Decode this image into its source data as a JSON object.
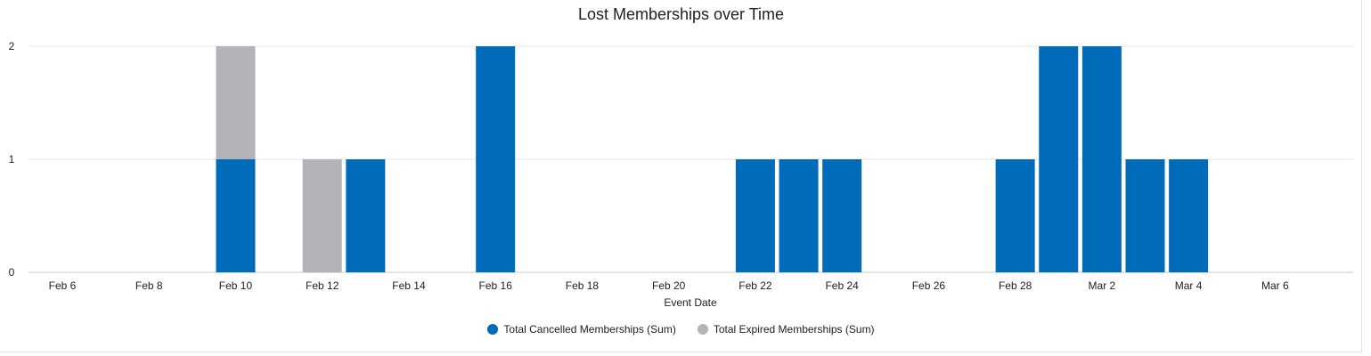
{
  "chart_data": {
    "type": "bar",
    "stacked": true,
    "title": "Lost Memberships over Time",
    "xlabel": "Event Date",
    "ylabel": "",
    "ylim": [
      0,
      2
    ],
    "yticks": [
      0,
      1,
      2
    ],
    "grid": true,
    "legend_position": "bottom",
    "x_start_day": 6,
    "x_tick_labels": [
      "Feb 6",
      "Feb 8",
      "Feb 10",
      "Feb 12",
      "Feb 14",
      "Feb 16",
      "Feb 18",
      "Feb 20",
      "Feb 22",
      "Feb 24",
      "Feb 26",
      "Feb 28",
      "Mar 2",
      "Mar 4",
      "Mar 6"
    ],
    "categories": [
      "Feb 6",
      "Feb 7",
      "Feb 8",
      "Feb 9",
      "Feb 10",
      "Feb 11",
      "Feb 12",
      "Feb 13",
      "Feb 14",
      "Feb 15",
      "Feb 16",
      "Feb 17",
      "Feb 18",
      "Feb 19",
      "Feb 20",
      "Feb 21",
      "Feb 22",
      "Feb 23",
      "Feb 24",
      "Feb 25",
      "Feb 26",
      "Feb 27",
      "Feb 28",
      "Mar 1",
      "Mar 2",
      "Mar 3",
      "Mar 4",
      "Mar 5",
      "Mar 6",
      "Mar 7"
    ],
    "series": [
      {
        "name": "Total Cancelled Memberships (Sum)",
        "color": "#006bb8",
        "values": [
          0,
          0,
          0,
          0,
          1,
          0,
          0,
          1,
          0,
          0,
          2,
          0,
          0,
          0,
          0,
          0,
          1,
          1,
          1,
          0,
          0,
          0,
          1,
          2,
          2,
          1,
          1,
          0,
          0,
          0
        ]
      },
      {
        "name": "Total Expired Memberships (Sum)",
        "color": "#b3b4b8",
        "values": [
          0,
          0,
          0,
          0,
          1,
          0,
          1,
          0,
          0,
          0,
          0,
          0,
          0,
          0,
          0,
          0,
          0,
          0,
          0,
          0,
          0,
          0,
          0,
          0,
          0,
          0,
          0,
          0,
          0,
          0
        ]
      }
    ]
  }
}
